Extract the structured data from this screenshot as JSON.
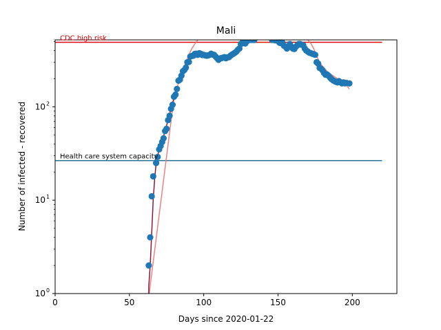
{
  "chart_data": {
    "type": "scatter",
    "title": "Mali",
    "xlabel": "Days since 2020-01-22",
    "ylabel": "Number of infected - recovered",
    "xlim": [
      0,
      230
    ],
    "ylim": [
      1,
      520
    ],
    "yscale": "log",
    "xticks": [
      0,
      50,
      100,
      150,
      200
    ],
    "yticks": [
      {
        "value": 1,
        "label": "10",
        "exp": "0"
      },
      {
        "value": 10,
        "label": "10",
        "exp": "1"
      },
      {
        "value": 100,
        "label": "10",
        "exp": "2"
      }
    ],
    "grid": false,
    "reference_lines": [
      {
        "name": "CDC high risk",
        "y": 490,
        "x_range": [
          0,
          220
        ],
        "color": "#dd0000"
      },
      {
        "name": "Health care system capacity",
        "y": 26.5,
        "x_range": [
          0,
          220
        ],
        "color": "#1f6f8b"
      }
    ],
    "model_curve": {
      "colors": [
        "#8b1a3a",
        "#f08080"
      ],
      "split_x": 80,
      "x": [
        63,
        64,
        65,
        66,
        67,
        68,
        69,
        70,
        72,
        74,
        76,
        78,
        80,
        82,
        84,
        86,
        88,
        90,
        92,
        94,
        96,
        98,
        100,
        102,
        104,
        110,
        120,
        130,
        140,
        150,
        160,
        165,
        170,
        172,
        174,
        176,
        178,
        180,
        182,
        184,
        186,
        188,
        190,
        192,
        194,
        196,
        198
      ],
      "y": [
        1.2,
        2.0,
        4.5,
        10,
        17,
        25,
        30,
        35,
        43,
        55,
        72,
        95,
        125,
        160,
        200,
        250,
        300,
        360,
        420,
        470,
        520,
        540,
        540,
        540,
        540,
        540,
        540,
        540,
        540,
        540,
        540,
        540,
        520,
        480,
        420,
        350,
        300,
        270,
        250,
        230,
        220,
        210,
        200,
        190,
        180,
        170,
        155
      ]
    },
    "observations": {
      "color": "#1f77b4",
      "x": [
        63,
        64,
        65,
        66,
        68,
        69,
        70,
        71,
        72,
        73,
        74,
        75,
        76,
        77,
        78,
        79,
        80,
        81,
        82,
        83,
        84,
        85,
        86,
        87,
        88,
        89,
        90,
        91,
        92,
        93,
        94,
        95,
        96,
        97,
        98,
        99,
        100,
        101,
        102,
        103,
        104,
        105,
        106,
        107,
        108,
        109,
        110,
        111,
        112,
        113,
        114,
        115,
        116,
        117,
        118,
        119,
        120,
        121,
        122,
        123,
        124,
        125,
        126,
        127,
        128,
        129,
        130,
        131,
        132,
        133,
        134,
        146,
        148,
        150,
        151,
        152,
        153,
        154,
        155,
        156,
        157,
        158,
        159,
        160,
        161,
        162,
        163,
        164,
        165,
        166,
        167,
        168,
        169,
        170,
        171,
        172,
        173,
        174,
        175,
        176,
        177,
        178,
        179,
        180,
        181,
        182,
        183,
        184,
        185,
        186,
        187,
        188,
        189,
        190,
        191,
        192,
        193,
        194,
        195,
        196,
        198
      ],
      "y": [
        2,
        4,
        11,
        18,
        25,
        29,
        35,
        38,
        42,
        46,
        55,
        58,
        72,
        80,
        95,
        105,
        128,
        135,
        155,
        190,
        195,
        215,
        240,
        248,
        262,
        300,
        302,
        345,
        350,
        352,
        368,
        370,
        360,
        375,
        370,
        358,
        360,
        355,
        352,
        355,
        360,
        370,
        362,
        360,
        345,
        330,
        318,
        330,
        332,
        335,
        340,
        330,
        338,
        340,
        352,
        362,
        370,
        378,
        390,
        408,
        420,
        470,
        485,
        480,
        475,
        500,
        520,
        520,
        520,
        520,
        520,
        520,
        515,
        505,
        485,
        480,
        485,
        450,
        440,
        420,
        445,
        470,
        440,
        420,
        415,
        440,
        455,
        470,
        470,
        460,
        455,
        420,
        400,
        390,
        380,
        375,
        370,
        365,
        360,
        300,
        290,
        260,
        255,
        245,
        230,
        220,
        222,
        215,
        205,
        198,
        192,
        188,
        185,
        182,
        188,
        183,
        178,
        182,
        178,
        180,
        178
      ]
    }
  }
}
